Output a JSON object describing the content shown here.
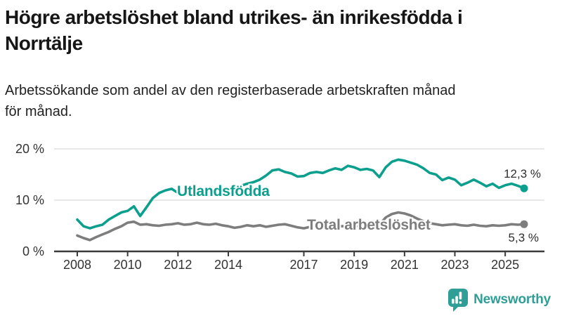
{
  "header": {
    "title": "Högre arbetslöshet bland utrikes- än inrikesfödda i Norrtälje",
    "title_lines": [
      "Högre arbetslöshet bland utrikes- än inrikesfödda i",
      "Norrtälje"
    ],
    "subtitle": "Arbetssökande som andel av den registerbaserade arbetskraften månad för månad.",
    "subtitle_lines": [
      "Arbetssökande som andel av den registerbaserade arbetskraften månad",
      "för månad."
    ]
  },
  "colors": {
    "background": "#ffffff",
    "title_text": "#161616",
    "axis": "#3b3b3b",
    "axis_text": "#333333",
    "grid": "#d9d9d9",
    "teal_series": "#0d9f8d",
    "gray_series": "#7d7d7d",
    "value_label_text": "#2e2e2e",
    "brand_teal": "#2f9e96"
  },
  "chart_data": {
    "type": "line",
    "title": "Högre arbetslöshet bland utrikes- än inrikesfödda i Norrtälje",
    "subtitle": "Arbetssökande som andel av den registerbaserade arbetskraften månad för månad.",
    "xlabel": "",
    "ylabel": "",
    "unit": "%",
    "grid": "horizontal",
    "legend_position": "inline-labels-on-lines",
    "ylim": [
      0,
      20
    ],
    "xlim": [
      2007.1,
      2026.6
    ],
    "x_start": 2008.0,
    "x_step_years": 0.25,
    "x_end": 2025.75,
    "y_ticks": [
      {
        "value": 0,
        "label": "0 %"
      },
      {
        "value": 10,
        "label": "10 %"
      },
      {
        "value": 20,
        "label": "20 %"
      }
    ],
    "x_ticks": [
      {
        "value": 2008,
        "label": "2008"
      },
      {
        "value": 2010,
        "label": "2010"
      },
      {
        "value": 2012,
        "label": "2012"
      },
      {
        "value": 2014,
        "label": "2014"
      },
      {
        "value": 2017,
        "label": "2017"
      },
      {
        "value": 2019,
        "label": "2019"
      },
      {
        "value": 2021,
        "label": "2021"
      },
      {
        "value": 2023,
        "label": "2023"
      },
      {
        "value": 2025,
        "label": "2025"
      }
    ],
    "series": [
      {
        "name": "Utlandsfödda",
        "slug": "utlandsfodda",
        "color": "#0d9f8d",
        "end_value": 12.3,
        "end_label": "12,3 %",
        "values": [
          6.2,
          4.9,
          4.5,
          4.9,
          5.2,
          6.2,
          6.9,
          7.6,
          7.9,
          8.8,
          6.9,
          8.6,
          10.4,
          11.4,
          11.9,
          12.2,
          11.4,
          11.1,
          11.4,
          11.6,
          11.3,
          11.6,
          11.8,
          11.7,
          12.0,
          12.4,
          12.8,
          13.2,
          13.5,
          14.0,
          14.8,
          15.8,
          16.0,
          15.5,
          15.2,
          14.6,
          14.7,
          15.3,
          15.5,
          15.3,
          15.8,
          16.2,
          15.9,
          16.7,
          16.4,
          15.9,
          16.1,
          15.8,
          14.5,
          16.4,
          17.5,
          17.9,
          17.7,
          17.3,
          16.9,
          16.2,
          15.3,
          15.0,
          13.9,
          14.4,
          14.0,
          12.9,
          13.4,
          14.0,
          13.4,
          12.7,
          13.2,
          12.4,
          12.9,
          13.2,
          12.8,
          12.3
        ]
      },
      {
        "name": "Total arbetslöshet",
        "slug": "total-arbetsloshet",
        "color": "#7d7d7d",
        "end_value": 5.3,
        "end_label": "5,3 %",
        "values": [
          3.1,
          2.6,
          2.2,
          2.8,
          3.3,
          3.8,
          4.4,
          4.9,
          5.6,
          5.8,
          5.2,
          5.3,
          5.1,
          5.0,
          5.2,
          5.3,
          5.5,
          5.2,
          5.3,
          5.6,
          5.3,
          5.2,
          5.4,
          5.1,
          4.9,
          4.6,
          4.8,
          5.1,
          4.9,
          5.1,
          4.8,
          5.0,
          5.2,
          5.3,
          5.0,
          4.7,
          4.5,
          4.8,
          5.0,
          4.8,
          4.9,
          5.1,
          4.9,
          5.0,
          5.1,
          4.9,
          4.8,
          4.9,
          5.2,
          6.6,
          7.3,
          7.6,
          7.4,
          7.0,
          6.4,
          5.9,
          5.5,
          5.3,
          5.1,
          5.2,
          5.3,
          5.1,
          5.0,
          5.2,
          5.0,
          4.9,
          5.1,
          5.0,
          5.1,
          5.3,
          5.2,
          5.3
        ]
      }
    ]
  },
  "footer": {
    "brand": "Newsworthy"
  }
}
